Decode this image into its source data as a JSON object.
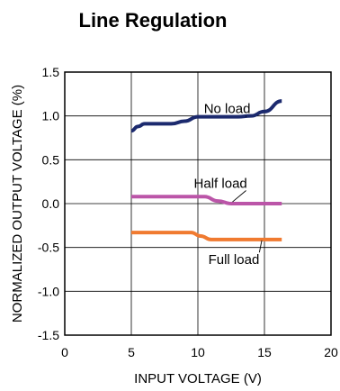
{
  "chart_data": {
    "type": "line",
    "title": "Line Regulation",
    "xlabel": "INPUT VOLTAGE (V)",
    "ylabel": "NORMALIZED OUTPUT VOLTAGE (%)",
    "xlim": [
      0,
      20
    ],
    "ylim": [
      -1.5,
      1.5
    ],
    "x_ticks": [
      "0",
      "5",
      "10",
      "15",
      "20"
    ],
    "y_ticks": [
      "1.5",
      "1.0",
      "0.5",
      "0.0",
      "-0.5",
      "-1.0",
      "-1.5"
    ],
    "grid": true,
    "series": [
      {
        "name": "No load",
        "color": "#1c2a6e",
        "points": [
          [
            5,
            0.83
          ],
          [
            5.5,
            0.88
          ],
          [
            6,
            0.91
          ],
          [
            8,
            0.91
          ],
          [
            9,
            0.94
          ],
          [
            10,
            0.99
          ],
          [
            13,
            0.99
          ],
          [
            14,
            1.0
          ],
          [
            15,
            1.05
          ],
          [
            16.3,
            1.17
          ]
        ]
      },
      {
        "name": "Half load",
        "color": "#bb55a8",
        "points": [
          [
            5,
            0.08
          ],
          [
            10.5,
            0.08
          ],
          [
            11.5,
            0.03
          ],
          [
            12.5,
            0.0
          ],
          [
            16.3,
            0.0
          ]
        ]
      },
      {
        "name": "Full load",
        "color": "#f07a30",
        "points": [
          [
            5,
            -0.33
          ],
          [
            9.5,
            -0.33
          ],
          [
            10.2,
            -0.37
          ],
          [
            11,
            -0.41
          ],
          [
            16.3,
            -0.41
          ]
        ]
      }
    ],
    "annotations": [
      {
        "text": "No load",
        "x": 12.2,
        "y": 1.03,
        "points_to": [
          13.6,
          0.99
        ]
      },
      {
        "text": "Half load",
        "x": 11.7,
        "y": 0.18,
        "points_to": [
          12.6,
          0.02
        ]
      },
      {
        "text": "Full load",
        "x": 12.7,
        "y": -0.69,
        "points_to": [
          14.8,
          -0.42
        ]
      }
    ]
  }
}
